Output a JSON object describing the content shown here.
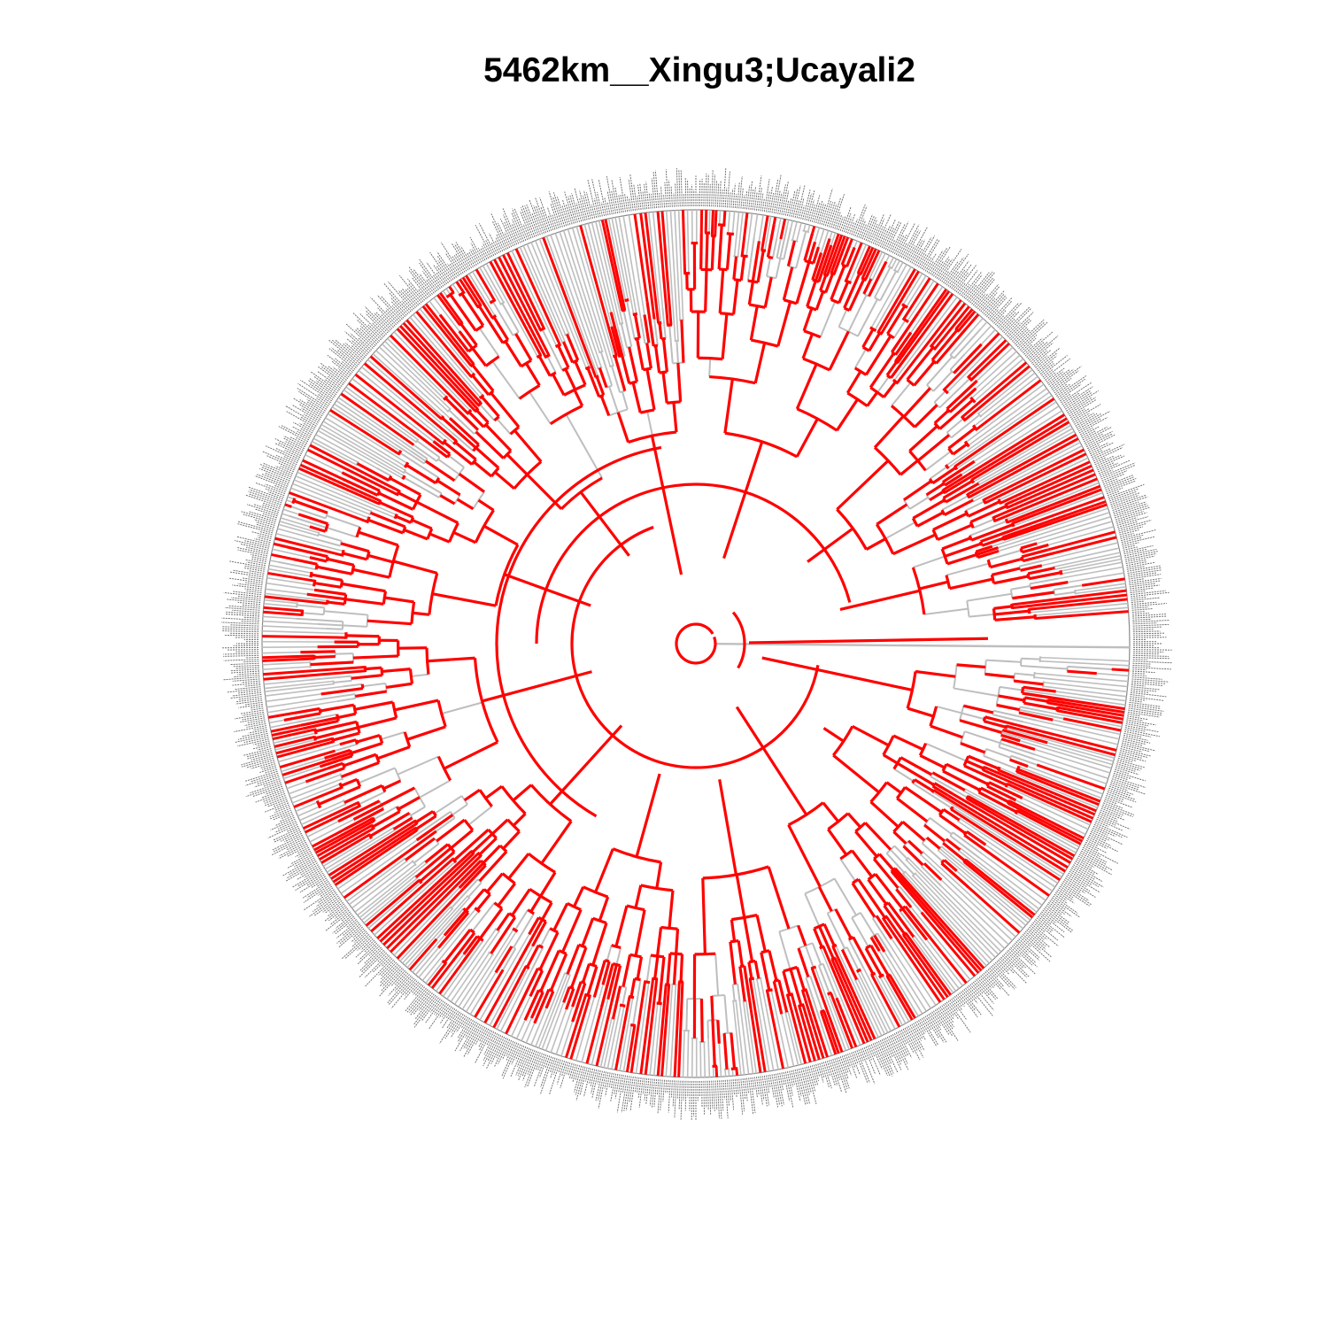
{
  "title": "5462km__Xingu3;Ucayali2",
  "colors": {
    "highlighted_branch": "#ff0000",
    "background_branch": "#bebebe",
    "tip_label": "#333333",
    "background": "#ffffff"
  },
  "tree": {
    "layout": "fan",
    "highlight_color_name": "red",
    "background_color_name": "grey"
  }
}
